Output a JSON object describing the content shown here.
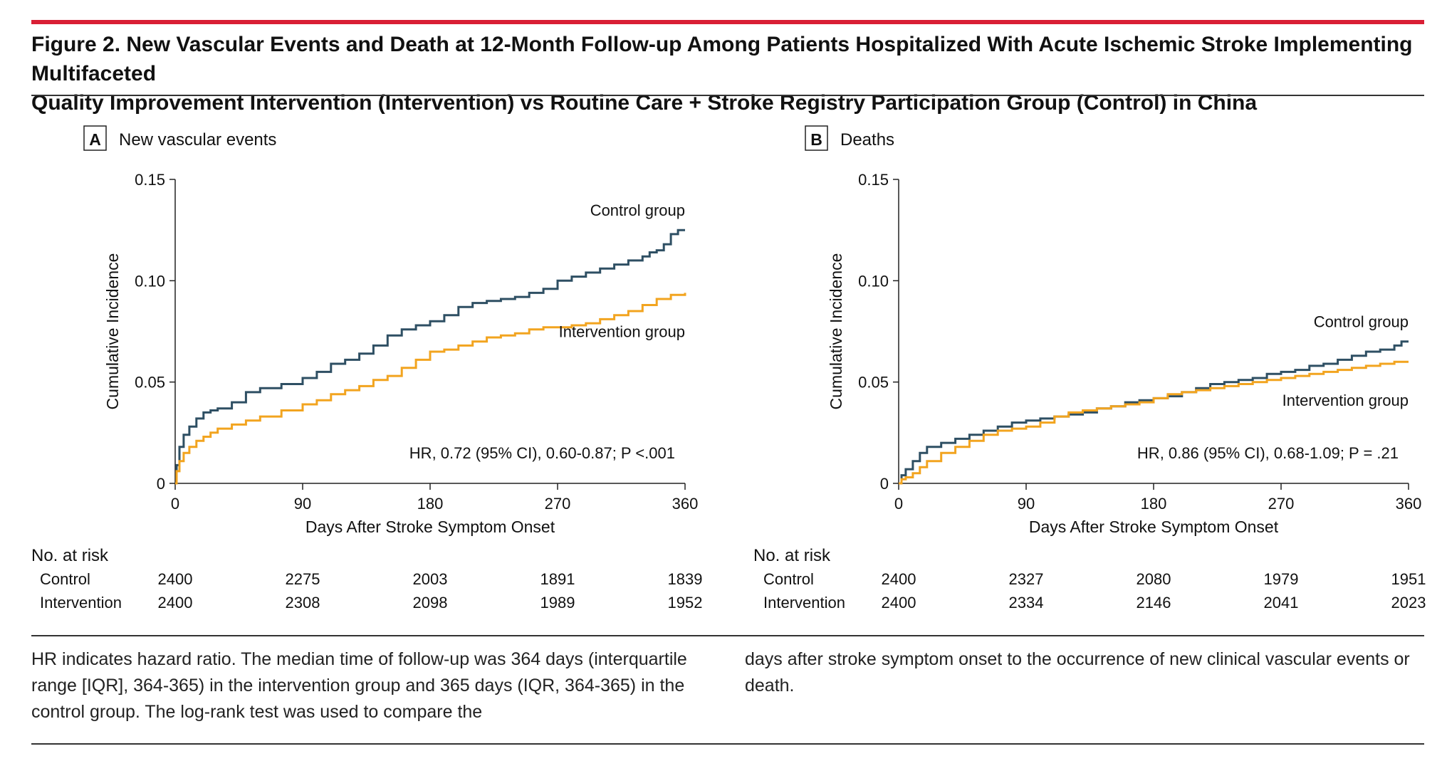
{
  "figure": {
    "title_line1": "Figure 2. New Vascular Events and Death at 12-Month Follow-up Among Patients Hospitalized With Acute Ischemic Stroke Implementing Multifaceted",
    "title_line2": "Quality Improvement Intervention (Intervention) vs Routine Care + Stroke Registry Participation Group (Control) in China",
    "caption_left": "HR indicates hazard ratio. The median time of follow-up was 364 days (interquartile range [IQR], 364-365) in the intervention group and 365 days (IQR, 364-365) in the control group. The log-rank test was used to compare the",
    "caption_right": "days after stroke symptom onset to the occurrence of new clinical vascular events or death."
  },
  "colors": {
    "control": "#2e4f63",
    "intervention": "#f2a41f",
    "accent_rule": "#d91f35",
    "axis": "#222222"
  },
  "chart_data": [
    {
      "type": "line",
      "panel_letter": "A",
      "panel_title": "New vascular events",
      "xlabel": "Days After Stroke Symptom Onset",
      "ylabel": "Cumulative Incidence",
      "xlim": [
        0,
        360
      ],
      "ylim": [
        0,
        0.15
      ],
      "x_ticks": [
        0,
        90,
        180,
        270,
        360
      ],
      "y_ticks": [
        0,
        0.05,
        0.1,
        0.15
      ],
      "y_tick_labels": [
        "0",
        "0.05",
        "0.10",
        "0.15"
      ],
      "annotation": "HR, 0.72 (95% CI), 0.60-0.87; P <.001",
      "series": [
        {
          "name": "Control group",
          "color_key": "control",
          "label_pos": "above-end",
          "x": [
            0,
            1,
            3,
            6,
            10,
            15,
            20,
            25,
            30,
            40,
            50,
            60,
            75,
            90,
            100,
            110,
            120,
            130,
            140,
            150,
            160,
            170,
            180,
            190,
            200,
            210,
            220,
            230,
            240,
            250,
            260,
            270,
            280,
            290,
            300,
            310,
            320,
            330,
            335,
            340,
            345,
            350,
            355,
            360
          ],
          "y": [
            0,
            0.009,
            0.018,
            0.024,
            0.028,
            0.032,
            0.035,
            0.036,
            0.037,
            0.04,
            0.045,
            0.047,
            0.049,
            0.052,
            0.055,
            0.059,
            0.061,
            0.064,
            0.068,
            0.073,
            0.076,
            0.078,
            0.08,
            0.083,
            0.087,
            0.089,
            0.09,
            0.091,
            0.092,
            0.094,
            0.096,
            0.1,
            0.102,
            0.104,
            0.106,
            0.108,
            0.11,
            0.112,
            0.114,
            0.115,
            0.118,
            0.123,
            0.125,
            0.125
          ]
        },
        {
          "name": "Intervention group",
          "color_key": "intervention",
          "label_pos": "below-end",
          "x": [
            0,
            1,
            3,
            6,
            10,
            15,
            20,
            25,
            30,
            40,
            50,
            60,
            75,
            90,
            100,
            110,
            120,
            130,
            140,
            150,
            160,
            170,
            180,
            190,
            200,
            210,
            220,
            230,
            240,
            250,
            260,
            270,
            280,
            290,
            300,
            310,
            320,
            330,
            340,
            350,
            360
          ],
          "y": [
            0,
            0.006,
            0.011,
            0.015,
            0.018,
            0.021,
            0.023,
            0.025,
            0.027,
            0.029,
            0.031,
            0.033,
            0.036,
            0.039,
            0.041,
            0.044,
            0.046,
            0.048,
            0.051,
            0.053,
            0.057,
            0.061,
            0.065,
            0.066,
            0.068,
            0.07,
            0.072,
            0.073,
            0.074,
            0.076,
            0.077,
            0.077,
            0.078,
            0.079,
            0.081,
            0.083,
            0.085,
            0.088,
            0.091,
            0.093,
            0.094
          ]
        }
      ],
      "risk_table": {
        "heading": "No. at risk",
        "rows": [
          {
            "label": "Control",
            "values": [
              "2400",
              "2275",
              "2003",
              "1891",
              "1839"
            ]
          },
          {
            "label": "Intervention",
            "values": [
              "2400",
              "2308",
              "2098",
              "1989",
              "1952"
            ]
          }
        ]
      }
    },
    {
      "type": "line",
      "panel_letter": "B",
      "panel_title": "Deaths",
      "xlabel": "Days After Stroke Symptom Onset",
      "ylabel": "Cumulative Incidence",
      "xlim": [
        0,
        360
      ],
      "ylim": [
        0,
        0.15
      ],
      "x_ticks": [
        0,
        90,
        180,
        270,
        360
      ],
      "y_ticks": [
        0,
        0.05,
        0.1,
        0.15
      ],
      "y_tick_labels": [
        "0",
        "0.05",
        "0.10",
        "0.15"
      ],
      "annotation": "HR, 0.86 (95% CI), 0.68-1.09; P = .21",
      "series": [
        {
          "name": "Control group",
          "color_key": "control",
          "label_pos": "above-end",
          "x": [
            0,
            2,
            5,
            10,
            15,
            20,
            30,
            40,
            50,
            60,
            70,
            80,
            90,
            100,
            110,
            120,
            130,
            140,
            150,
            160,
            170,
            180,
            190,
            200,
            210,
            220,
            230,
            240,
            250,
            260,
            270,
            280,
            290,
            300,
            310,
            320,
            330,
            340,
            350,
            355,
            360
          ],
          "y": [
            0,
            0.004,
            0.007,
            0.011,
            0.015,
            0.018,
            0.02,
            0.022,
            0.024,
            0.026,
            0.028,
            0.03,
            0.031,
            0.032,
            0.033,
            0.034,
            0.035,
            0.037,
            0.038,
            0.04,
            0.041,
            0.042,
            0.043,
            0.045,
            0.047,
            0.049,
            0.05,
            0.051,
            0.052,
            0.054,
            0.055,
            0.056,
            0.058,
            0.059,
            0.061,
            0.063,
            0.065,
            0.066,
            0.068,
            0.07,
            0.07
          ]
        },
        {
          "name": "Intervention group",
          "color_key": "intervention",
          "label_pos": "below-end",
          "x": [
            0,
            2,
            5,
            10,
            15,
            20,
            30,
            40,
            50,
            60,
            70,
            80,
            90,
            100,
            110,
            120,
            130,
            140,
            150,
            160,
            170,
            180,
            190,
            200,
            210,
            220,
            230,
            240,
            250,
            260,
            270,
            280,
            290,
            300,
            310,
            320,
            330,
            340,
            350,
            360
          ],
          "y": [
            0,
            0.002,
            0.003,
            0.005,
            0.008,
            0.011,
            0.015,
            0.018,
            0.021,
            0.024,
            0.026,
            0.027,
            0.028,
            0.03,
            0.033,
            0.035,
            0.036,
            0.037,
            0.038,
            0.039,
            0.04,
            0.042,
            0.044,
            0.045,
            0.046,
            0.047,
            0.048,
            0.049,
            0.05,
            0.051,
            0.052,
            0.053,
            0.054,
            0.055,
            0.056,
            0.057,
            0.058,
            0.059,
            0.06,
            0.06
          ]
        }
      ],
      "risk_table": {
        "heading": "No. at risk",
        "rows": [
          {
            "label": "Control",
            "values": [
              "2400",
              "2327",
              "2080",
              "1979",
              "1951"
            ]
          },
          {
            "label": "Intervention",
            "values": [
              "2400",
              "2334",
              "2146",
              "2041",
              "2023"
            ]
          }
        ]
      }
    }
  ]
}
